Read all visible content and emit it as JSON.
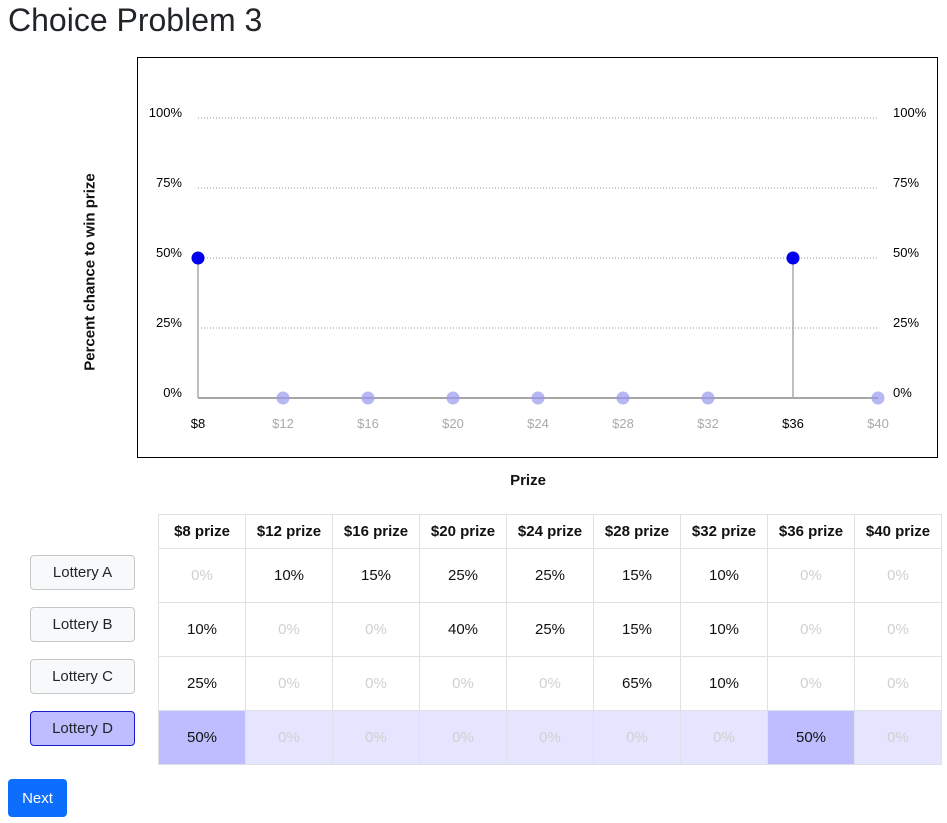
{
  "page": {
    "title": "Choice Problem 3"
  },
  "chart_data": {
    "type": "scatter",
    "xlabel": "Prize",
    "ylabel": "Percent chance to win prize",
    "x_ticks": [
      "$8",
      "$12",
      "$16",
      "$20",
      "$24",
      "$28",
      "$32",
      "$36",
      "$40"
    ],
    "y_ticks": [
      "0%",
      "25%",
      "50%",
      "75%",
      "100%"
    ],
    "ylim": [
      0,
      100
    ],
    "grid": true,
    "series": [
      {
        "values": [
          50,
          0,
          0,
          0,
          0,
          0,
          0,
          50,
          0
        ]
      }
    ],
    "colors": {
      "point": "#0000ee",
      "zero_point": "#9999ee",
      "stem": "#aaaaaa",
      "grid": "#999999",
      "active_tick": "#000000",
      "inactive_tick": "#aaaaaa"
    }
  },
  "table": {
    "headers": [
      "$8 prize",
      "$12 prize",
      "$16 prize",
      "$20 prize",
      "$24 prize",
      "$28 prize",
      "$32 prize",
      "$36 prize",
      "$40 prize"
    ],
    "rows": [
      {
        "label": "Lottery A",
        "values": [
          "0%",
          "10%",
          "15%",
          "25%",
          "25%",
          "15%",
          "10%",
          "0%",
          "0%"
        ]
      },
      {
        "label": "Lottery B",
        "values": [
          "10%",
          "0%",
          "0%",
          "40%",
          "25%",
          "15%",
          "10%",
          "0%",
          "0%"
        ]
      },
      {
        "label": "Lottery C",
        "values": [
          "25%",
          "0%",
          "0%",
          "0%",
          "0%",
          "65%",
          "10%",
          "0%",
          "0%"
        ]
      },
      {
        "label": "Lottery D",
        "values": [
          "50%",
          "0%",
          "0%",
          "0%",
          "0%",
          "0%",
          "0%",
          "50%",
          "0%"
        ]
      }
    ],
    "selected_index": 3
  },
  "next_button": {
    "label": "Next"
  }
}
